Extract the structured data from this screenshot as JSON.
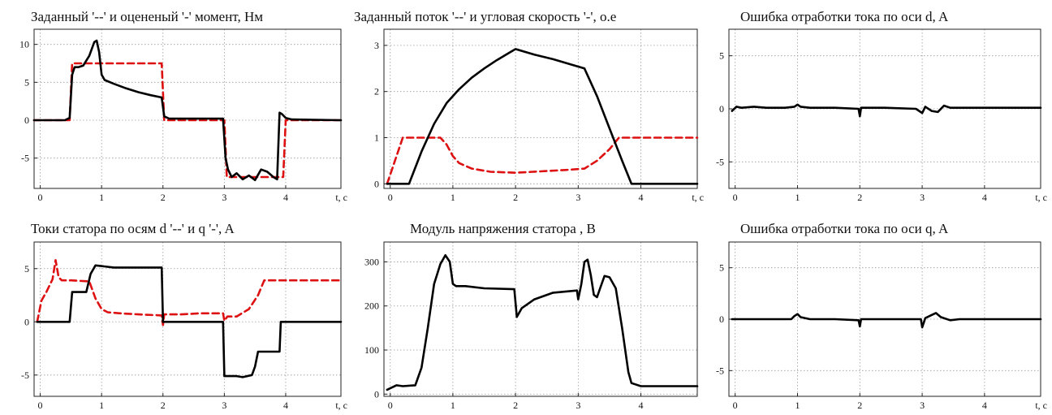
{
  "chart_data": [
    {
      "type": "line",
      "title": "Заданный '--' и оцененый '-' момент, Нм",
      "xlabel": "t, c",
      "ylabel": "",
      "xlim": [
        -0.1,
        4.9
      ],
      "ylim": [
        -9,
        12
      ],
      "xticks": [
        0,
        1,
        2,
        3,
        4
      ],
      "yticks": [
        -5,
        0,
        5,
        10
      ],
      "grid": true,
      "series": [
        {
          "style": "dashed",
          "color": "#dd1111",
          "points": [
            [
              -0.1,
              0
            ],
            [
              0.48,
              0
            ],
            [
              0.52,
              7.5
            ],
            [
              1.98,
              7.5
            ],
            [
              2.02,
              0
            ],
            [
              3.0,
              0
            ],
            [
              3.04,
              -7.5
            ],
            [
              3.96,
              -7.5
            ],
            [
              4.0,
              0
            ],
            [
              4.9,
              0
            ]
          ]
        },
        {
          "style": "solid",
          "color": "#000000",
          "points": [
            [
              -0.1,
              0
            ],
            [
              0.4,
              0
            ],
            [
              0.48,
              0.3
            ],
            [
              0.52,
              6
            ],
            [
              0.56,
              7
            ],
            [
              0.62,
              7
            ],
            [
              0.7,
              7.2
            ],
            [
              0.8,
              8.5
            ],
            [
              0.88,
              10.3
            ],
            [
              0.92,
              10.5
            ],
            [
              0.96,
              9
            ],
            [
              1.0,
              6
            ],
            [
              1.05,
              5.3
            ],
            [
              1.2,
              4.8
            ],
            [
              1.4,
              4.2
            ],
            [
              1.6,
              3.7
            ],
            [
              1.8,
              3.3
            ],
            [
              1.98,
              3.0
            ],
            [
              2.02,
              0.5
            ],
            [
              2.1,
              0.2
            ],
            [
              2.5,
              0.2
            ],
            [
              2.98,
              0.2
            ],
            [
              3.02,
              -5
            ],
            [
              3.06,
              -6.5
            ],
            [
              3.12,
              -7.5
            ],
            [
              3.2,
              -7
            ],
            [
              3.3,
              -7.8
            ],
            [
              3.4,
              -7.3
            ],
            [
              3.5,
              -7.9
            ],
            [
              3.6,
              -6.5
            ],
            [
              3.7,
              -6.8
            ],
            [
              3.8,
              -7.5
            ],
            [
              3.86,
              -7.8
            ],
            [
              3.9,
              1
            ],
            [
              3.94,
              0.8
            ],
            [
              4.0,
              0.3
            ],
            [
              4.1,
              0.1
            ],
            [
              4.9,
              0
            ]
          ]
        }
      ]
    },
    {
      "type": "line",
      "title": "Заданный поток '--' и угловая скорость '-', о.е",
      "xlabel": "t, c",
      "ylabel": "",
      "xlim": [
        -0.1,
        4.9
      ],
      "ylim": [
        -0.1,
        3.35
      ],
      "xticks": [
        0,
        1,
        2,
        3,
        4
      ],
      "yticks": [
        0,
        1,
        2,
        3
      ],
      "grid": true,
      "series": [
        {
          "style": "dashed",
          "color": "#dd1111",
          "points": [
            [
              -0.05,
              0
            ],
            [
              0.2,
              1
            ],
            [
              0.8,
              1
            ],
            [
              0.9,
              0.85
            ],
            [
              1.0,
              0.6
            ],
            [
              1.1,
              0.45
            ],
            [
              1.3,
              0.33
            ],
            [
              1.6,
              0.26
            ],
            [
              2.0,
              0.24
            ],
            [
              2.4,
              0.27
            ],
            [
              2.8,
              0.3
            ],
            [
              3.1,
              0.33
            ],
            [
              3.3,
              0.5
            ],
            [
              3.5,
              0.75
            ],
            [
              3.65,
              1
            ],
            [
              4.9,
              1
            ]
          ]
        },
        {
          "style": "solid",
          "color": "#000000",
          "points": [
            [
              -0.05,
              0
            ],
            [
              0.3,
              0
            ],
            [
              0.5,
              0.7
            ],
            [
              0.7,
              1.3
            ],
            [
              0.9,
              1.75
            ],
            [
              1.1,
              2.05
            ],
            [
              1.3,
              2.3
            ],
            [
              1.5,
              2.5
            ],
            [
              1.7,
              2.68
            ],
            [
              1.85,
              2.8
            ],
            [
              2.0,
              2.92
            ],
            [
              2.3,
              2.8
            ],
            [
              2.6,
              2.7
            ],
            [
              2.9,
              2.58
            ],
            [
              3.1,
              2.5
            ],
            [
              3.3,
              1.9
            ],
            [
              3.5,
              1.2
            ],
            [
              3.7,
              0.5
            ],
            [
              3.85,
              0
            ],
            [
              4.9,
              0
            ]
          ]
        }
      ]
    },
    {
      "type": "line",
      "title": "Ошибка отработки тока по оси d, A",
      "xlabel": "t, c",
      "ylabel": "",
      "xlim": [
        -0.1,
        4.9
      ],
      "ylim": [
        -7.5,
        7.5
      ],
      "xticks": [
        0,
        1,
        2,
        3,
        4
      ],
      "yticks": [
        -5,
        0,
        5
      ],
      "grid": true,
      "series": [
        {
          "style": "solid",
          "color": "#000000",
          "points": [
            [
              -0.05,
              -0.2
            ],
            [
              0.02,
              0.2
            ],
            [
              0.1,
              0.1
            ],
            [
              0.3,
              0.2
            ],
            [
              0.5,
              0.1
            ],
            [
              0.8,
              0.1
            ],
            [
              0.95,
              0.2
            ],
            [
              1.0,
              0.4
            ],
            [
              1.05,
              0.2
            ],
            [
              1.2,
              0.1
            ],
            [
              1.6,
              0.1
            ],
            [
              1.98,
              0
            ],
            [
              2.0,
              -0.7
            ],
            [
              2.02,
              0.1
            ],
            [
              2.4,
              0.1
            ],
            [
              2.9,
              0
            ],
            [
              3.0,
              -0.4
            ],
            [
              3.05,
              0.2
            ],
            [
              3.15,
              -0.2
            ],
            [
              3.25,
              -0.3
            ],
            [
              3.35,
              0.3
            ],
            [
              3.45,
              0.1
            ],
            [
              3.7,
              0.1
            ],
            [
              4.2,
              0.1
            ],
            [
              4.9,
              0.1
            ]
          ]
        }
      ]
    },
    {
      "type": "line",
      "title": "Токи статора по осям d '--' и q '-', A",
      "xlabel": "t, c",
      "ylabel": "",
      "xlim": [
        -0.1,
        4.9
      ],
      "ylim": [
        -7,
        7.5
      ],
      "xticks": [
        0,
        1,
        2,
        3,
        4
      ],
      "yticks": [
        -5,
        0,
        5
      ],
      "grid": true,
      "series": [
        {
          "style": "dashed",
          "color": "#dd1111",
          "points": [
            [
              -0.05,
              0
            ],
            [
              0.02,
              2
            ],
            [
              0.1,
              2.8
            ],
            [
              0.2,
              4
            ],
            [
              0.25,
              5.8
            ],
            [
              0.3,
              4.2
            ],
            [
              0.35,
              3.9
            ],
            [
              0.5,
              3.9
            ],
            [
              0.8,
              3.8
            ],
            [
              0.9,
              2.2
            ],
            [
              1.0,
              1.2
            ],
            [
              1.1,
              0.9
            ],
            [
              1.3,
              0.8
            ],
            [
              1.6,
              0.7
            ],
            [
              1.98,
              0.6
            ],
            [
              2.0,
              -0.3
            ],
            [
              2.02,
              0.7
            ],
            [
              2.3,
              0.7
            ],
            [
              2.6,
              0.8
            ],
            [
              2.98,
              0.8
            ],
            [
              3.0,
              0.1
            ],
            [
              3.05,
              0.5
            ],
            [
              3.2,
              0.5
            ],
            [
              3.4,
              1.2
            ],
            [
              3.55,
              2.5
            ],
            [
              3.65,
              3.9
            ],
            [
              4.9,
              3.9
            ]
          ]
        },
        {
          "style": "solid",
          "color": "#000000",
          "points": [
            [
              -0.05,
              0
            ],
            [
              0.4,
              0
            ],
            [
              0.48,
              0
            ],
            [
              0.52,
              2.8
            ],
            [
              0.75,
              2.8
            ],
            [
              0.82,
              4.5
            ],
            [
              0.9,
              5.3
            ],
            [
              1.2,
              5.1
            ],
            [
              1.98,
              5.1
            ],
            [
              2.0,
              0
            ],
            [
              2.98,
              0
            ],
            [
              3.0,
              -5.1
            ],
            [
              3.2,
              -5.1
            ],
            [
              3.3,
              -5.2
            ],
            [
              3.45,
              -5
            ],
            [
              3.5,
              -4.2
            ],
            [
              3.55,
              -2.8
            ],
            [
              3.9,
              -2.8
            ],
            [
              3.92,
              0
            ],
            [
              4.9,
              0
            ]
          ]
        }
      ]
    },
    {
      "type": "line",
      "title": "Модуль напряжения статора , В",
      "xlabel": "",
      "ylabel": "",
      "xlim": [
        -0.1,
        4.9
      ],
      "ylim": [
        -5,
        345
      ],
      "xticks": [
        0,
        1,
        2,
        3,
        4
      ],
      "yticks": [
        0,
        100,
        200,
        300
      ],
      "grid": true,
      "series": [
        {
          "style": "solid",
          "color": "#000000",
          "points": [
            [
              -0.05,
              10
            ],
            [
              0.1,
              20
            ],
            [
              0.2,
              18
            ],
            [
              0.4,
              20
            ],
            [
              0.5,
              60
            ],
            [
              0.6,
              150
            ],
            [
              0.7,
              250
            ],
            [
              0.8,
              295
            ],
            [
              0.88,
              315
            ],
            [
              0.95,
              300
            ],
            [
              1.0,
              250
            ],
            [
              1.05,
              245
            ],
            [
              1.2,
              245
            ],
            [
              1.5,
              240
            ],
            [
              1.98,
              238
            ],
            [
              2.02,
              175
            ],
            [
              2.1,
              195
            ],
            [
              2.3,
              215
            ],
            [
              2.6,
              230
            ],
            [
              2.98,
              235
            ],
            [
              3.0,
              215
            ],
            [
              3.05,
              250
            ],
            [
              3.1,
              300
            ],
            [
              3.15,
              305
            ],
            [
              3.2,
              270
            ],
            [
              3.25,
              225
            ],
            [
              3.3,
              220
            ],
            [
              3.35,
              240
            ],
            [
              3.42,
              268
            ],
            [
              3.5,
              265
            ],
            [
              3.6,
              240
            ],
            [
              3.7,
              150
            ],
            [
              3.8,
              50
            ],
            [
              3.85,
              25
            ],
            [
              4.0,
              18
            ],
            [
              4.9,
              18
            ]
          ]
        }
      ]
    },
    {
      "type": "line",
      "title": "Ошибка отработки тока по оси q, A",
      "xlabel": "t, c",
      "ylabel": "",
      "xlim": [
        -0.1,
        4.9
      ],
      "ylim": [
        -7.5,
        7.5
      ],
      "xticks": [
        0,
        1,
        2,
        3,
        4
      ],
      "yticks": [
        -5,
        0,
        5
      ],
      "grid": true,
      "series": [
        {
          "style": "solid",
          "color": "#000000",
          "points": [
            [
              -0.05,
              0
            ],
            [
              0.3,
              0
            ],
            [
              0.6,
              0
            ],
            [
              0.9,
              0
            ],
            [
              0.95,
              0.3
            ],
            [
              1.0,
              0.5
            ],
            [
              1.05,
              0.2
            ],
            [
              1.2,
              0
            ],
            [
              1.6,
              0
            ],
            [
              1.98,
              -0.1
            ],
            [
              2.0,
              -0.7
            ],
            [
              2.02,
              0
            ],
            [
              2.5,
              0
            ],
            [
              2.98,
              0
            ],
            [
              3.0,
              -0.8
            ],
            [
              3.05,
              0.1
            ],
            [
              3.15,
              0.4
            ],
            [
              3.22,
              0.6
            ],
            [
              3.3,
              0.2
            ],
            [
              3.45,
              -0.1
            ],
            [
              3.6,
              0
            ],
            [
              4.0,
              0
            ],
            [
              4.9,
              0
            ]
          ]
        }
      ]
    }
  ]
}
